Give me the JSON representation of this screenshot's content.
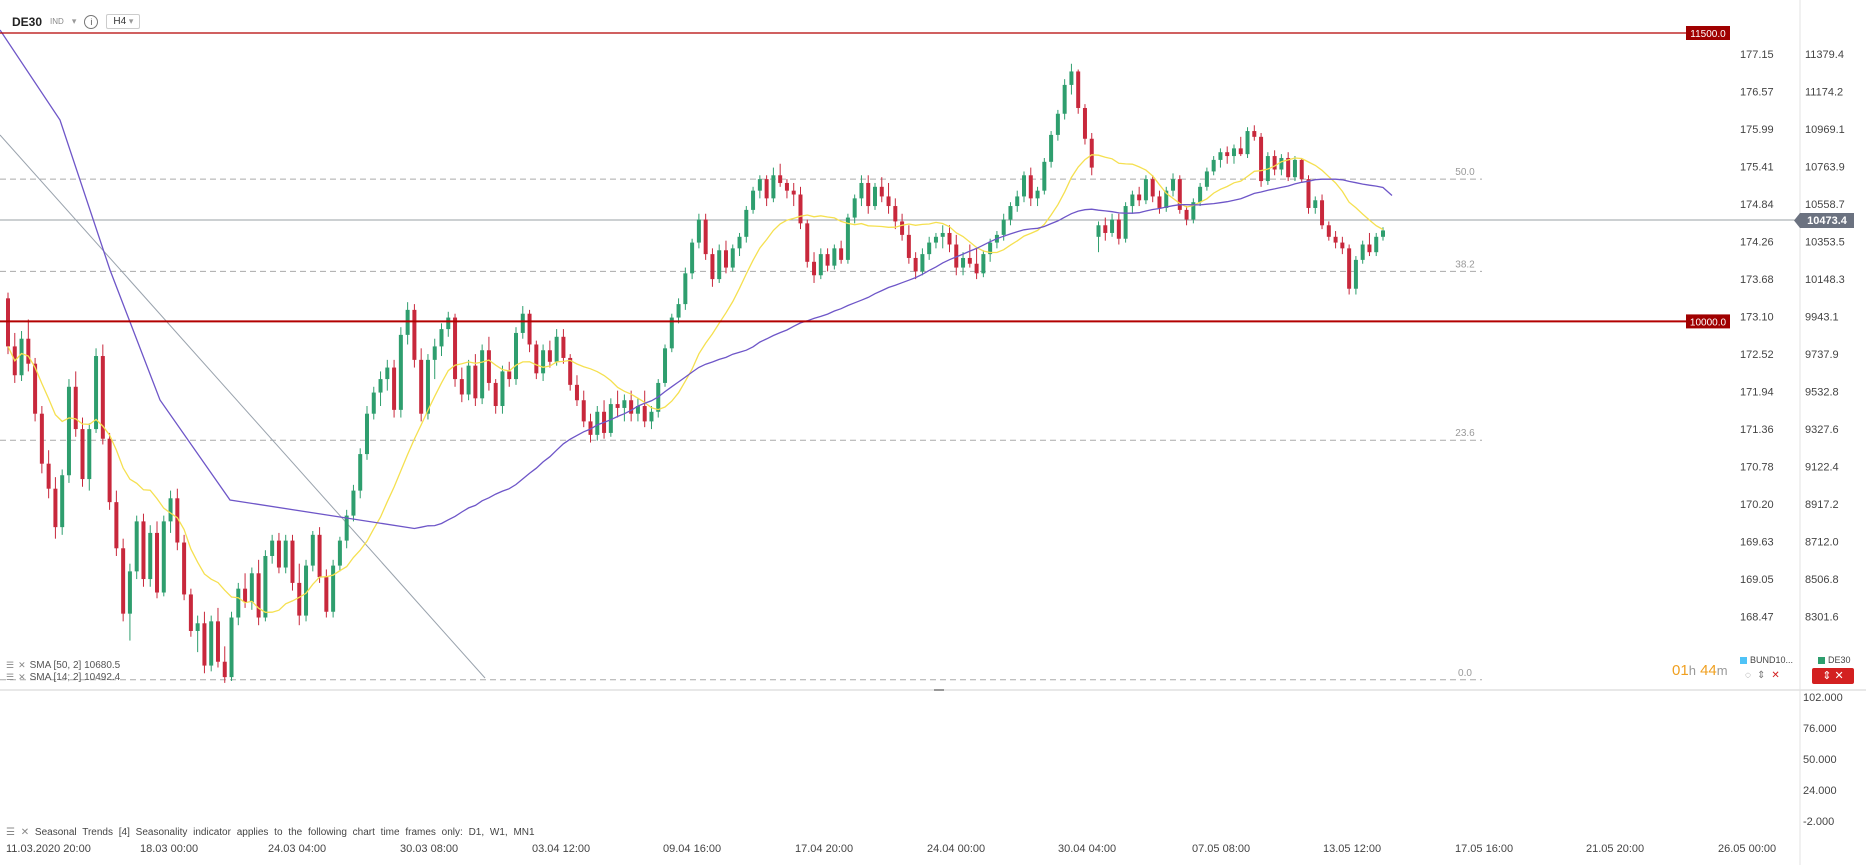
{
  "toolbar": {
    "symbol": "DE30",
    "badge": "IND",
    "timeframe": "H4",
    "info_icon": "info-icon"
  },
  "indicators": {
    "sma50": "SMA [50, 2] 10680.5",
    "sma14": "SMA [14; 2] 10492.4"
  },
  "countdown": {
    "hours": "01",
    "h": "h",
    "minutes": "44",
    "m": "m"
  },
  "mini_legend": {
    "bund": "BUND10...",
    "de30": "DE30"
  },
  "seasonal_text": "Seasonal Trends [4] Seasonality indicator applies to the following chart time frames only: D1, W1, MN1",
  "colors": {
    "bull": "#2e9e6e",
    "bear": "#c8283c",
    "sma50": "#6e56c8",
    "sma14": "#f5e050",
    "level_line": "#b30000",
    "current_price_bg": "#6b7280",
    "bund_color": "#4fc3f7",
    "de30_color": "#2e9e6e"
  },
  "chart_data": {
    "type": "candlestick",
    "symbol": "DE30",
    "timeframe": "H4",
    "x_tick_labels": [
      "11.03.2020  20:00",
      "18.03  00:00",
      "24.03  04:00",
      "30.03  08:00",
      "03.04  12:00",
      "09.04  16:00",
      "17.04  20:00",
      "24.04  00:00",
      "30.04  04:00",
      "07.05  08:00",
      "13.05  12:00",
      "17.05  16:00",
      "21.05  20:00",
      "26.05  00:00"
    ],
    "price_axis_labels": [
      "11379.4",
      "11174.2",
      "10969.1",
      "10763.9",
      "10558.7",
      "10353.5",
      "10148.3",
      "9943.1",
      "9737.9",
      "9532.8",
      "9327.6",
      "9122.4",
      "8917.2",
      "8712.0",
      "8506.8",
      "8301.6"
    ],
    "secondary_axis_labels": [
      "177.15",
      "176.57",
      "175.99",
      "175.41",
      "174.84",
      "174.26",
      "173.68",
      "173.10",
      "172.52",
      "171.94",
      "171.36",
      "170.78",
      "170.20",
      "169.63",
      "169.05",
      "168.47"
    ],
    "price_range": [
      8160,
      11560
    ],
    "current_price": "10473.4",
    "horizontal_levels": [
      {
        "label": "11500.0",
        "value": 11500
      },
      {
        "label": "10000.0",
        "value": 10000
      }
    ],
    "fibonacci_levels": [
      {
        "label": "50.0",
        "value": 10740
      },
      {
        "label": "38.2",
        "value": 10260
      },
      {
        "label": "23.6",
        "value": 9382
      },
      {
        "label": "0.0",
        "value": 8136
      }
    ],
    "subpanel_axis_labels": [
      "102.000",
      "76.000",
      "50.000",
      "24.000",
      "-2.000"
    ],
    "subpanel_range": [
      -2,
      102
    ],
    "candles_ohlc": [
      [
        10120,
        10150,
        9830,
        9870
      ],
      [
        9870,
        9940,
        9680,
        9720
      ],
      [
        9720,
        9950,
        9690,
        9910
      ],
      [
        9910,
        10010,
        9740,
        9780
      ],
      [
        9780,
        9810,
        9480,
        9520
      ],
      [
        9520,
        9560,
        9210,
        9260
      ],
      [
        9260,
        9330,
        9080,
        9130
      ],
      [
        9130,
        9190,
        8870,
        8930
      ],
      [
        8930,
        9230,
        8890,
        9200
      ],
      [
        9200,
        9700,
        9160,
        9660
      ],
      [
        9660,
        9740,
        9400,
        9440
      ],
      [
        9440,
        9500,
        9140,
        9180
      ],
      [
        9180,
        9470,
        9120,
        9440
      ],
      [
        9440,
        9860,
        9420,
        9820
      ],
      [
        9820,
        9880,
        9360,
        9390
      ],
      [
        9390,
        9420,
        9020,
        9060
      ],
      [
        9060,
        9120,
        8780,
        8820
      ],
      [
        8820,
        8870,
        8440,
        8480
      ],
      [
        8480,
        8740,
        8340,
        8700
      ],
      [
        8700,
        8990,
        8660,
        8960
      ],
      [
        8960,
        9000,
        8620,
        8660
      ],
      [
        8660,
        8940,
        8620,
        8900
      ],
      [
        8900,
        8960,
        8560,
        8590
      ],
      [
        8590,
        8990,
        8570,
        8960
      ],
      [
        8960,
        9120,
        8900,
        9080
      ],
      [
        9080,
        9130,
        8810,
        8850
      ],
      [
        8850,
        8890,
        8550,
        8580
      ],
      [
        8580,
        8610,
        8360,
        8390
      ],
      [
        8390,
        8470,
        8280,
        8430
      ],
      [
        8430,
        8490,
        8170,
        8210
      ],
      [
        8210,
        8470,
        8180,
        8440
      ],
      [
        8440,
        8510,
        8200,
        8230
      ],
      [
        8230,
        8310,
        8120,
        8150
      ],
      [
        8150,
        8490,
        8130,
        8460
      ],
      [
        8460,
        8640,
        8420,
        8610
      ],
      [
        8610,
        8690,
        8510,
        8540
      ],
      [
        8540,
        8720,
        8500,
        8690
      ],
      [
        8690,
        8760,
        8420,
        8460
      ],
      [
        8460,
        8810,
        8440,
        8780
      ],
      [
        8780,
        8890,
        8740,
        8860
      ],
      [
        8860,
        8900,
        8690,
        8720
      ],
      [
        8720,
        8890,
        8690,
        8860
      ],
      [
        8860,
        8890,
        8600,
        8640
      ],
      [
        8640,
        8740,
        8420,
        8470
      ],
      [
        8470,
        8760,
        8440,
        8730
      ],
      [
        8730,
        8910,
        8700,
        8890
      ],
      [
        8890,
        8930,
        8640,
        8670
      ],
      [
        8670,
        8710,
        8460,
        8490
      ],
      [
        8490,
        8760,
        8460,
        8730
      ],
      [
        8730,
        8880,
        8700,
        8860
      ],
      [
        8860,
        9020,
        8820,
        8990
      ],
      [
        8990,
        9150,
        8960,
        9120
      ],
      [
        9120,
        9340,
        9080,
        9310
      ],
      [
        9310,
        9560,
        9280,
        9520
      ],
      [
        9520,
        9660,
        9490,
        9630
      ],
      [
        9630,
        9740,
        9560,
        9700
      ],
      [
        9700,
        9800,
        9640,
        9760
      ],
      [
        9760,
        9800,
        9500,
        9540
      ],
      [
        9540,
        9970,
        9500,
        9930
      ],
      [
        9930,
        10100,
        9880,
        10060
      ],
      [
        10060,
        10090,
        9760,
        9800
      ],
      [
        9800,
        9860,
        9480,
        9520
      ],
      [
        9520,
        9830,
        9490,
        9800
      ],
      [
        9800,
        9910,
        9700,
        9870
      ],
      [
        9870,
        9990,
        9820,
        9960
      ],
      [
        9960,
        10050,
        9920,
        10020
      ],
      [
        10020,
        10040,
        9660,
        9700
      ],
      [
        9700,
        9760,
        9580,
        9620
      ],
      [
        9620,
        9800,
        9590,
        9770
      ],
      [
        9770,
        9830,
        9560,
        9600
      ],
      [
        9600,
        9880,
        9570,
        9850
      ],
      [
        9850,
        9920,
        9640,
        9680
      ],
      [
        9680,
        9700,
        9520,
        9560
      ],
      [
        9560,
        9770,
        9520,
        9740
      ],
      [
        9740,
        9790,
        9660,
        9700
      ],
      [
        9700,
        9970,
        9670,
        9940
      ],
      [
        9940,
        10080,
        9910,
        10040
      ],
      [
        10040,
        10060,
        9840,
        9880
      ],
      [
        9880,
        9900,
        9700,
        9730
      ],
      [
        9730,
        9880,
        9690,
        9850
      ],
      [
        9850,
        9900,
        9760,
        9790
      ],
      [
        9790,
        9960,
        9770,
        9920
      ],
      [
        9920,
        9960,
        9780,
        9810
      ],
      [
        9810,
        9830,
        9640,
        9670
      ],
      [
        9670,
        9720,
        9560,
        9590
      ],
      [
        9590,
        9640,
        9450,
        9480
      ],
      [
        9480,
        9520,
        9370,
        9410
      ],
      [
        9410,
        9560,
        9380,
        9530
      ],
      [
        9530,
        9590,
        9390,
        9420
      ],
      [
        9420,
        9600,
        9400,
        9570
      ],
      [
        9570,
        9640,
        9500,
        9550
      ],
      [
        9550,
        9620,
        9480,
        9590
      ],
      [
        9590,
        9640,
        9480,
        9520
      ],
      [
        9520,
        9600,
        9480,
        9560
      ],
      [
        9560,
        9640,
        9450,
        9480
      ],
      [
        9480,
        9560,
        9440,
        9530
      ],
      [
        9530,
        9700,
        9500,
        9680
      ],
      [
        9680,
        9880,
        9660,
        9860
      ],
      [
        9860,
        10040,
        9840,
        10020
      ],
      [
        10020,
        10120,
        9990,
        10090
      ],
      [
        10090,
        10280,
        10060,
        10250
      ],
      [
        10250,
        10430,
        10220,
        10410
      ],
      [
        10410,
        10560,
        10380,
        10530
      ],
      [
        10530,
        10560,
        10320,
        10350
      ],
      [
        10350,
        10380,
        10180,
        10220
      ],
      [
        10220,
        10400,
        10200,
        10370
      ],
      [
        10370,
        10420,
        10250,
        10280
      ],
      [
        10280,
        10400,
        10260,
        10380
      ],
      [
        10380,
        10460,
        10340,
        10440
      ],
      [
        10440,
        10600,
        10410,
        10580
      ],
      [
        10580,
        10700,
        10560,
        10680
      ],
      [
        10680,
        10760,
        10640,
        10740
      ],
      [
        10740,
        10760,
        10600,
        10640
      ],
      [
        10640,
        10800,
        10620,
        10760
      ],
      [
        10760,
        10820,
        10700,
        10720
      ],
      [
        10720,
        10740,
        10640,
        10680
      ],
      [
        10680,
        10720,
        10600,
        10660
      ],
      [
        10660,
        10700,
        10480,
        10510
      ],
      [
        10510,
        10530,
        10280,
        10310
      ],
      [
        10310,
        10360,
        10200,
        10240
      ],
      [
        10240,
        10380,
        10220,
        10350
      ],
      [
        10350,
        10380,
        10260,
        10290
      ],
      [
        10290,
        10400,
        10270,
        10380
      ],
      [
        10380,
        10420,
        10300,
        10320
      ],
      [
        10320,
        10560,
        10300,
        10540
      ],
      [
        10540,
        10660,
        10510,
        10640
      ],
      [
        10640,
        10760,
        10600,
        10720
      ],
      [
        10720,
        10760,
        10560,
        10600
      ],
      [
        10600,
        10720,
        10580,
        10700
      ],
      [
        10700,
        10750,
        10620,
        10650
      ],
      [
        10650,
        10720,
        10560,
        10600
      ],
      [
        10600,
        10640,
        10480,
        10520
      ],
      [
        10520,
        10560,
        10420,
        10450
      ],
      [
        10450,
        10500,
        10300,
        10330
      ],
      [
        10330,
        10360,
        10220,
        10260
      ],
      [
        10260,
        10380,
        10240,
        10350
      ],
      [
        10350,
        10440,
        10320,
        10410
      ],
      [
        10410,
        10460,
        10380,
        10440
      ],
      [
        10440,
        10500,
        10380,
        10460
      ],
      [
        10460,
        10500,
        10360,
        10400
      ],
      [
        10400,
        10450,
        10240,
        10280
      ],
      [
        10280,
        10360,
        10240,
        10330
      ],
      [
        10330,
        10400,
        10280,
        10300
      ],
      [
        10300,
        10380,
        10220,
        10250
      ],
      [
        10250,
        10370,
        10230,
        10350
      ],
      [
        10350,
        10430,
        10310,
        10410
      ],
      [
        10410,
        10470,
        10380,
        10450
      ],
      [
        10450,
        10560,
        10420,
        10530
      ],
      [
        10530,
        10620,
        10500,
        10600
      ],
      [
        10600,
        10680,
        10570,
        10650
      ],
      [
        10650,
        10780,
        10620,
        10760
      ],
      [
        10760,
        10800,
        10600,
        10640
      ],
      [
        10640,
        10700,
        10600,
        10680
      ],
      [
        10680,
        10850,
        10660,
        10830
      ],
      [
        10830,
        10990,
        10800,
        10970
      ],
      [
        10970,
        11100,
        10940,
        11080
      ],
      [
        11080,
        11260,
        11050,
        11230
      ],
      [
        11230,
        11340,
        11180,
        11300
      ],
      [
        11300,
        11310,
        11080,
        11110
      ],
      [
        11110,
        11130,
        10920,
        10950
      ],
      [
        10950,
        10980,
        10760,
        10800
      ],
      [
        10440,
        10520,
        10360,
        10500
      ],
      [
        10500,
        10540,
        10420,
        10460
      ],
      [
        10460,
        10560,
        10440,
        10530
      ],
      [
        10530,
        10560,
        10400,
        10430
      ],
      [
        10430,
        10620,
        10410,
        10600
      ],
      [
        10600,
        10680,
        10560,
        10660
      ],
      [
        10660,
        10700,
        10600,
        10630
      ],
      [
        10630,
        10760,
        10610,
        10740
      ],
      [
        10740,
        10760,
        10620,
        10650
      ],
      [
        10650,
        10680,
        10560,
        10590
      ],
      [
        10590,
        10700,
        10570,
        10680
      ],
      [
        10680,
        10770,
        10650,
        10740
      ],
      [
        10740,
        10760,
        10560,
        10580
      ],
      [
        10580,
        10600,
        10500,
        10530
      ],
      [
        10530,
        10640,
        10510,
        10620
      ],
      [
        10620,
        10720,
        10600,
        10700
      ],
      [
        10700,
        10800,
        10680,
        10780
      ],
      [
        10780,
        10860,
        10760,
        10840
      ],
      [
        10840,
        10900,
        10800,
        10880
      ],
      [
        10880,
        10910,
        10820,
        10860
      ],
      [
        10860,
        10920,
        10820,
        10900
      ],
      [
        10900,
        10960,
        10860,
        10870
      ],
      [
        10870,
        11010,
        10850,
        10990
      ],
      [
        10990,
        11020,
        10940,
        10960
      ],
      [
        10960,
        10980,
        10700,
        10730
      ],
      [
        10730,
        10880,
        10710,
        10860
      ],
      [
        10860,
        10890,
        10760,
        10790
      ],
      [
        10790,
        10870,
        10760,
        10850
      ],
      [
        10850,
        10880,
        10730,
        10750
      ],
      [
        10750,
        10860,
        10730,
        10840
      ],
      [
        10840,
        10850,
        10720,
        10740
      ],
      [
        10740,
        10760,
        10560,
        10590
      ],
      [
        10590,
        10650,
        10560,
        10630
      ],
      [
        10630,
        10660,
        10480,
        10500
      ],
      [
        10500,
        10520,
        10420,
        10440
      ],
      [
        10440,
        10470,
        10380,
        10410
      ],
      [
        10410,
        10440,
        10350,
        10380
      ],
      [
        10380,
        10400,
        10140,
        10170
      ],
      [
        10170,
        10340,
        10140,
        10320
      ],
      [
        10320,
        10420,
        10300,
        10400
      ],
      [
        10400,
        10460,
        10340,
        10360
      ],
      [
        10360,
        10460,
        10340,
        10440
      ],
      [
        10440,
        10490,
        10420,
        10473
      ]
    ]
  }
}
